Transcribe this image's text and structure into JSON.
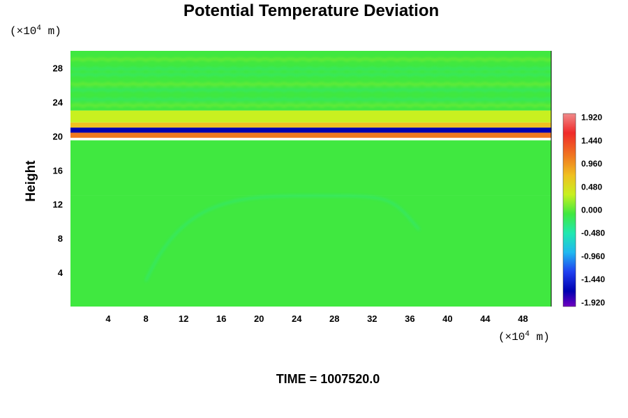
{
  "chart_data": {
    "type": "heatmap",
    "title": "Potential Temperature Deviation",
    "ylabel": "Height",
    "y_unit": {
      "prefix": "(×10",
      "exponent": "4",
      "suffix": " m)"
    },
    "x_unit": {
      "prefix": "(×10",
      "exponent": "4",
      "suffix": " m)"
    },
    "xlim": [
      0,
      51
    ],
    "ylim": [
      0,
      30
    ],
    "x_ticks": [
      "4",
      "8",
      "12",
      "16",
      "20",
      "24",
      "28",
      "32",
      "36",
      "40",
      "44",
      "48"
    ],
    "y_ticks": [
      "4",
      "8",
      "12",
      "16",
      "20",
      "24",
      "28"
    ],
    "colorbar": {
      "range": [
        -2.0,
        2.0
      ],
      "tick_labels": [
        "1.920",
        "1.440",
        "0.960",
        "0.480",
        "0.000",
        "-0.480",
        "-0.960",
        "-1.440",
        "-1.920"
      ],
      "colors": [
        "#f08a8a",
        "#f02a2a",
        "#f07820",
        "#f0c020",
        "#c8f020",
        "#40e840",
        "#20e8b0",
        "#20b8f0",
        "#2040f0",
        "#0000b0",
        "#7000c0"
      ]
    },
    "field_bands": [
      {
        "y_range": [
          0,
          13
        ],
        "level": -0.05
      },
      {
        "y_range": [
          13,
          19.5
        ],
        "level": 0.02
      },
      {
        "y_range": [
          19.8,
          20.4
        ],
        "level": 1.2
      },
      {
        "y_range": [
          20.4,
          21.0
        ],
        "level": -1.4
      },
      {
        "y_range": [
          21.0,
          21.6
        ],
        "level": 0.9
      },
      {
        "y_range": [
          21.6,
          23.0
        ],
        "level": 0.3
      },
      {
        "y_range": [
          23.0,
          30.0
        ],
        "level": 0.1
      }
    ],
    "annotation": "TIME = 1007520.0"
  }
}
